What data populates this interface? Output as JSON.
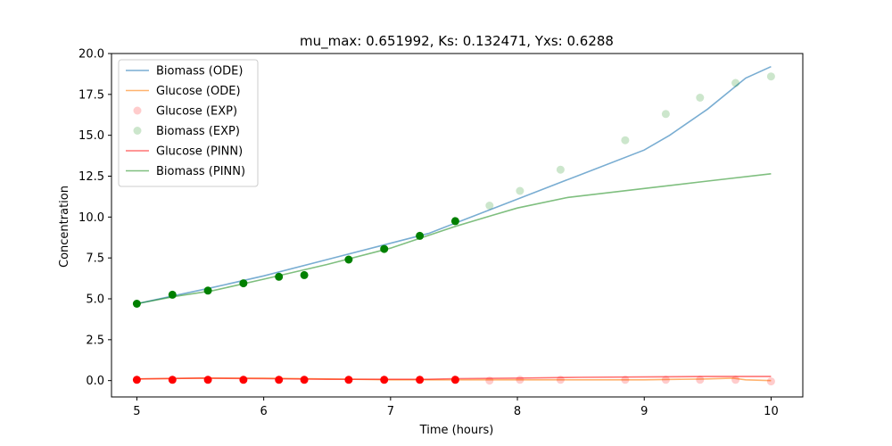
{
  "chart_data": {
    "type": "line",
    "title": "mu_max: 0.651992, Ks: 0.132471, Yxs: 0.6288",
    "xlabel": "Time (hours)",
    "ylabel": "Concentration",
    "xlim": [
      4.8,
      10.25
    ],
    "ylim": [
      -1.0,
      20.0
    ],
    "xticks": [
      5,
      6,
      7,
      8,
      9,
      10
    ],
    "yticks": [
      0.0,
      2.5,
      5.0,
      7.5,
      10.0,
      12.5,
      15.0,
      17.5,
      20.0
    ],
    "xtick_labels": [
      "5",
      "6",
      "7",
      "8",
      "9",
      "10"
    ],
    "ytick_labels": [
      "0.0",
      "2.5",
      "5.0",
      "7.5",
      "10.0",
      "12.5",
      "15.0",
      "17.5",
      "20.0"
    ],
    "grid": false,
    "legend_position": "top-left",
    "series": [
      {
        "name": "Biomass (ODE)",
        "kind": "line",
        "color": "#1f77b4",
        "opacity": 0.6,
        "x": [
          5.0,
          5.3,
          5.6,
          6.0,
          6.5,
          7.0,
          7.3,
          7.5,
          8.0,
          8.5,
          9.0,
          9.2,
          9.5,
          9.8,
          10.0
        ],
        "y": [
          4.7,
          5.2,
          5.7,
          6.4,
          7.4,
          8.4,
          9.0,
          9.6,
          11.1,
          12.6,
          14.1,
          15.0,
          16.6,
          18.5,
          19.2
        ]
      },
      {
        "name": "Glucose (ODE)",
        "kind": "line",
        "color": "#ff7f0e",
        "opacity": 0.6,
        "x": [
          5.0,
          5.5,
          6.0,
          6.5,
          7.0,
          7.5,
          8.0,
          8.5,
          9.0,
          9.5,
          9.7,
          9.8,
          10.0
        ],
        "y": [
          0.1,
          0.15,
          0.15,
          0.1,
          0.05,
          0.05,
          0.05,
          0.05,
          0.05,
          0.1,
          0.15,
          0.05,
          0.0
        ]
      },
      {
        "name": "Glucose (EXP)",
        "kind": "scatter",
        "color": "#ff0000",
        "opacity": 0.2,
        "x": [
          7.78,
          8.02,
          8.34,
          8.85,
          9.17,
          9.44,
          9.72,
          10.0
        ],
        "y": [
          0.0,
          0.05,
          0.05,
          0.05,
          0.05,
          0.05,
          0.05,
          -0.05
        ]
      },
      {
        "name": "Biomass (EXP)",
        "kind": "scatter",
        "color": "#008000",
        "opacity": 0.2,
        "x": [
          7.78,
          8.02,
          8.34,
          8.85,
          9.17,
          9.44,
          9.72,
          10.0
        ],
        "y": [
          10.7,
          11.6,
          12.9,
          14.7,
          16.3,
          17.3,
          18.2,
          18.6
        ]
      },
      {
        "name": "Glucose (PINN)",
        "kind": "line",
        "color": "#ff0000",
        "opacity": 0.55,
        "x": [
          5.0,
          5.5,
          6.0,
          6.5,
          7.0,
          7.3,
          7.5,
          8.0,
          8.5,
          9.0,
          9.5,
          10.0
        ],
        "y": [
          0.1,
          0.15,
          0.12,
          0.08,
          0.08,
          0.08,
          0.12,
          0.15,
          0.2,
          0.22,
          0.25,
          0.25
        ]
      },
      {
        "name": "Biomass (PINN)",
        "kind": "line",
        "color": "#008000",
        "opacity": 0.5,
        "x": [
          5.0,
          5.3,
          5.6,
          6.0,
          6.5,
          7.0,
          7.5,
          7.8,
          8.0,
          8.4,
          9.0,
          9.5,
          10.0
        ],
        "y": [
          4.7,
          5.15,
          5.5,
          6.2,
          7.1,
          8.1,
          9.4,
          10.1,
          10.55,
          11.2,
          11.75,
          12.2,
          12.65
        ]
      },
      {
        "name": "",
        "kind": "scatter",
        "color": "#008000",
        "opacity": 1.0,
        "x": [
          5.0,
          5.28,
          5.56,
          5.84,
          6.12,
          6.32,
          6.67,
          6.95,
          7.23,
          7.51
        ],
        "y": [
          4.7,
          5.25,
          5.5,
          5.95,
          6.35,
          6.45,
          7.4,
          8.05,
          8.85,
          9.75
        ]
      },
      {
        "name": "",
        "kind": "scatter",
        "color": "#ff0000",
        "opacity": 1.0,
        "x": [
          5.0,
          5.28,
          5.56,
          5.84,
          6.12,
          6.32,
          6.67,
          6.95,
          7.23,
          7.51
        ],
        "y": [
          0.05,
          0.05,
          0.05,
          0.05,
          0.05,
          0.05,
          0.05,
          0.05,
          0.05,
          0.05
        ]
      }
    ]
  }
}
